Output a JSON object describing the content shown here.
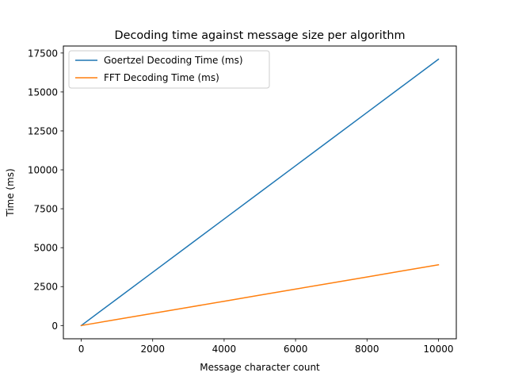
{
  "chart_data": {
    "type": "line",
    "title": "Decoding time against message size per algorithm",
    "xlabel": "Message character count",
    "ylabel": "Time (ms)",
    "xlim": [
      -500,
      10500
    ],
    "ylim": [
      -850,
      17950
    ],
    "xticks": [
      0,
      2000,
      4000,
      6000,
      8000,
      10000
    ],
    "yticks": [
      0,
      2500,
      5000,
      7500,
      10000,
      12500,
      15000,
      17500
    ],
    "grid": false,
    "legend_position": "upper-left",
    "series": [
      {
        "name": "Goertzel Decoding Time (ms)",
        "color": "#1f77b4",
        "x": [
          0,
          1000,
          2000,
          3000,
          4000,
          5000,
          6000,
          7000,
          8000,
          9000,
          10000
        ],
        "y": [
          0,
          1710,
          3420,
          5130,
          6840,
          8550,
          10260,
          11970,
          13680,
          15390,
          17100
        ]
      },
      {
        "name": "FFT Decoding Time (ms)",
        "color": "#ff7f0e",
        "x": [
          0,
          1000,
          2000,
          3000,
          4000,
          5000,
          6000,
          7000,
          8000,
          9000,
          10000
        ],
        "y": [
          0,
          390,
          780,
          1170,
          1560,
          1950,
          2340,
          2730,
          3120,
          3510,
          3900
        ]
      }
    ]
  }
}
